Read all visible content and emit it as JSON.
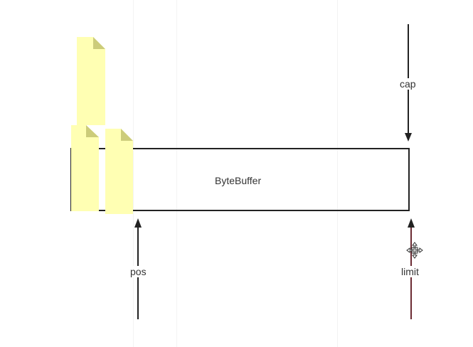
{
  "diagram": {
    "buffer_label": "ByteBuffer",
    "pointers": {
      "cap": "cap",
      "pos": "pos",
      "limit": "limit"
    },
    "colors": {
      "outline": "#222222",
      "document_fill": "#ffffb3",
      "document_fold": "#cccc7a",
      "limit_line": "#6b2b33"
    },
    "icons": {
      "documents": "document-icon",
      "cursor": "move-cursor-icon"
    }
  }
}
